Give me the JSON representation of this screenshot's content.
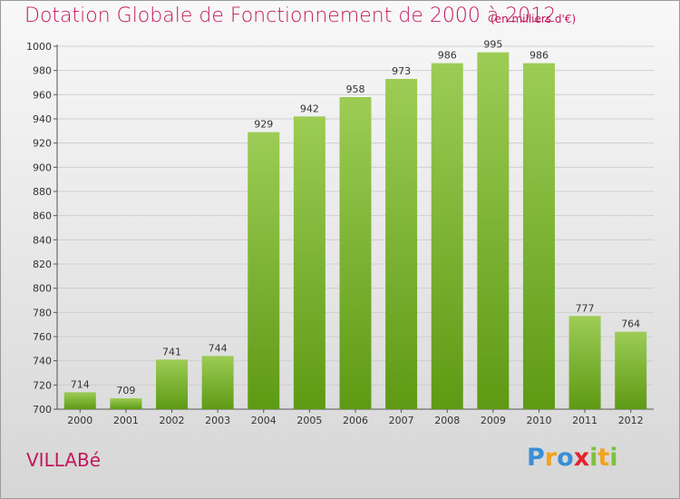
{
  "title": "Dotation Globale de Fonctionnement de 2000 à 2012",
  "subtitle": "(en milliers d'€)",
  "commune": "VILLABé",
  "logo": {
    "text": "Proxiti",
    "colors": [
      "#3a8fd6",
      "#f2a31b",
      "#7cc242",
      "#e2242c"
    ]
  },
  "colors": {
    "title": "#c2185b",
    "bar_top": "#9ccc55",
    "bar_bottom": "#5e9a14"
  },
  "chart_data": {
    "type": "bar",
    "categories": [
      "2000",
      "2001",
      "2002",
      "2003",
      "2004",
      "2005",
      "2006",
      "2007",
      "2008",
      "2009",
      "2010",
      "2011",
      "2012"
    ],
    "values": [
      714,
      709,
      741,
      744,
      929,
      942,
      958,
      973,
      986,
      995,
      986,
      777,
      764
    ],
    "title": "Dotation Globale de Fonctionnement de 2000 à 2012",
    "xlabel": "",
    "ylabel": "",
    "ylim": [
      700,
      1000
    ],
    "yticks": [
      700,
      720,
      740,
      760,
      780,
      800,
      820,
      840,
      860,
      880,
      900,
      920,
      940,
      960,
      980,
      1000
    ],
    "grid": true,
    "data_labels": true
  }
}
